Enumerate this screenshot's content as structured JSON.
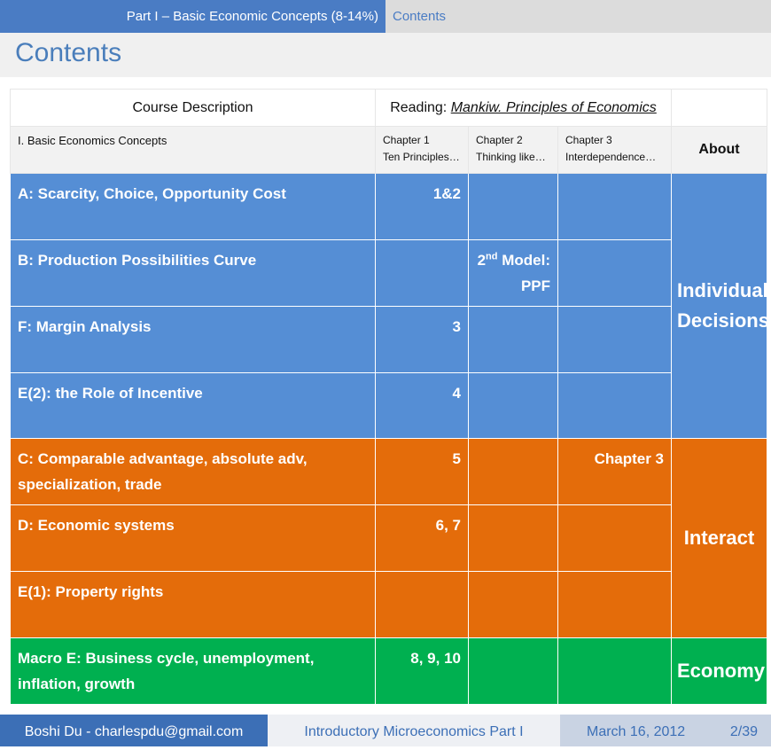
{
  "header": {
    "section": "Part I – Basic Economic Concepts (8-14%)",
    "subsection": "Contents"
  },
  "title": "Contents",
  "table": {
    "head": {
      "course": "Course Description",
      "reading_label": "Reading:",
      "reading_title": "Mankiw. Principles of Economics"
    },
    "subhead": {
      "unit": "I. Basic Economics Concepts",
      "chapters": [
        {
          "line1": "Chapter 1",
          "line2": "Ten Principles…"
        },
        {
          "line1": "Chapter 2",
          "line2": "Thinking like…"
        },
        {
          "line1": "Chapter 3",
          "line2": "Interdependence…"
        }
      ],
      "about": "About"
    },
    "groups": [
      {
        "about": "Individual Decisions",
        "rows": [
          {
            "topic": "A: Scarcity, Choice, Opportunity Cost",
            "ch1": "1&2"
          },
          {
            "topic": "B: Production Possibilities Curve",
            "ch2": {
              "base": "2",
              "sup": "nd",
              "text": "Model:",
              "line2": "PPF"
            }
          },
          {
            "topic": "F: Margin Analysis",
            "ch1": "3"
          },
          {
            "topic": "E(2): the Role of Incentive",
            "ch1": "4"
          }
        ]
      },
      {
        "about": "Interact",
        "rows": [
          {
            "topic": "C: Comparable advantage, absolute adv, specialization, trade",
            "ch1": "5",
            "ch3": "Chapter 3"
          },
          {
            "topic": "D: Economic systems",
            "ch1": "6, 7"
          },
          {
            "topic": "E(1): Property rights"
          }
        ]
      },
      {
        "about": "Economy",
        "rows": [
          {
            "topic": "Macro E: Business cycle, unemployment, inflation, growth",
            "ch1": "8, 9, 10"
          }
        ]
      }
    ]
  },
  "footer": {
    "author": "Boshi Du - charlespdu@gmail.com",
    "course": "Introductory Microeconomics Part I",
    "date": "March 16, 2012",
    "page": "2/39"
  }
}
